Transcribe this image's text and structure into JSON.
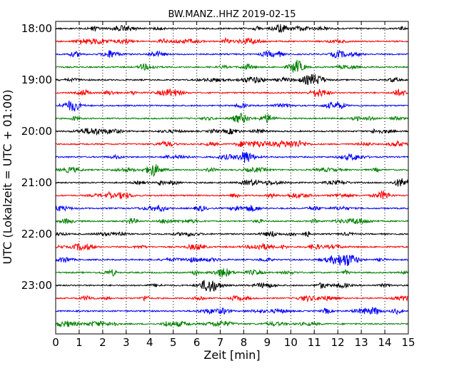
{
  "chart_data": {
    "type": "line",
    "title": "BW.MANZ..HHZ 2019-02-15",
    "xlabel": "Zeit  [min]",
    "ylabel": "UTC (Lokalzeit = UTC + 01:00)",
    "xlim": [
      0,
      15
    ],
    "x_ticks": [
      "0",
      "1",
      "2",
      "3",
      "4",
      "5",
      "6",
      "7",
      "8",
      "9",
      "10",
      "11",
      "12",
      "13",
      "14",
      "15"
    ],
    "y_ticks": [
      "18:00",
      "19:00",
      "20:00",
      "21:00",
      "22:00",
      "23:00"
    ],
    "grid": "vertical dotted at each minute",
    "trace_interval_minutes": 15,
    "trace_colors": [
      "#000000",
      "#ff0000",
      "#0000ff",
      "#008000"
    ],
    "traces": [
      {
        "start": "18:00",
        "color": "#000000"
      },
      {
        "start": "18:15",
        "color": "#ff0000"
      },
      {
        "start": "18:30",
        "color": "#0000ff"
      },
      {
        "start": "18:45",
        "color": "#008000"
      },
      {
        "start": "19:00",
        "color": "#000000"
      },
      {
        "start": "19:15",
        "color": "#ff0000"
      },
      {
        "start": "19:30",
        "color": "#0000ff"
      },
      {
        "start": "19:45",
        "color": "#008000"
      },
      {
        "start": "20:00",
        "color": "#000000"
      },
      {
        "start": "20:15",
        "color": "#ff0000"
      },
      {
        "start": "20:30",
        "color": "#0000ff"
      },
      {
        "start": "20:45",
        "color": "#008000"
      },
      {
        "start": "21:00",
        "color": "#000000"
      },
      {
        "start": "21:15",
        "color": "#ff0000"
      },
      {
        "start": "21:30",
        "color": "#0000ff"
      },
      {
        "start": "21:45",
        "color": "#008000"
      },
      {
        "start": "22:00",
        "color": "#000000"
      },
      {
        "start": "22:15",
        "color": "#ff0000"
      },
      {
        "start": "22:30",
        "color": "#0000ff"
      },
      {
        "start": "22:45",
        "color": "#008000"
      },
      {
        "start": "23:00",
        "color": "#000000"
      },
      {
        "start": "23:15",
        "color": "#ff0000"
      },
      {
        "start": "23:30",
        "color": "#0000ff"
      },
      {
        "start": "23:45",
        "color": "#008000"
      }
    ]
  }
}
